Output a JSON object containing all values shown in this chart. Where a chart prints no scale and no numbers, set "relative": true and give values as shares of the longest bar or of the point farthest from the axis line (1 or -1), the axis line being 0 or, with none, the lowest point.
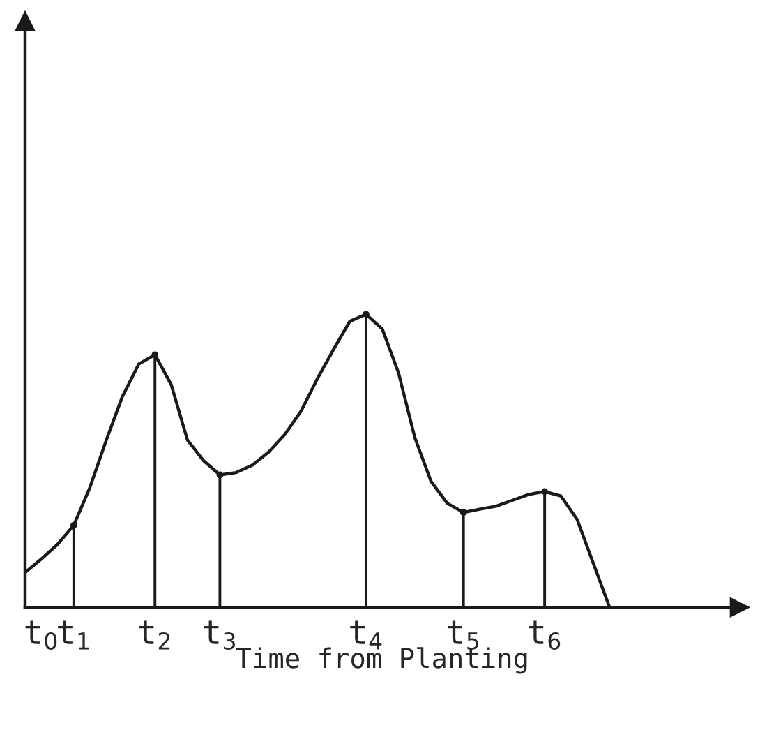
{
  "chart_data": {
    "type": "line",
    "relative": true,
    "xlabel": "Time from Planting",
    "categories": [
      null,
      "t$_{0}$",
      null,
      "t$_{1}$",
      null,
      null,
      null,
      null,
      "t$_{2}$",
      null,
      null,
      null,
      "t$_{3}$",
      null,
      null,
      null,
      null,
      null,
      null,
      null,
      null,
      "t$_{4}$",
      null,
      null,
      null,
      null,
      null,
      "t$_{5}$",
      null,
      null,
      null,
      null,
      "t$_{6}$",
      null,
      null,
      null,
      null,
      null,
      null,
      null,
      null,
      null,
      null,
      null,
      null
    ],
    "tick_labels": "x",
    "grid": false,
    "legend": false,
    "marker": "none",
    "line_style": "solid",
    "series": [
      {
        "color": "#1a1a1a",
        "values": [
          0.119,
          0.165,
          0.215,
          0.28,
          0.41,
          0.57,
          0.72,
          0.83,
          0.862,
          0.76,
          0.571,
          0.5,
          0.452,
          0.46,
          0.485,
          0.53,
          0.59,
          0.67,
          0.78,
          0.88,
          0.976,
          1.0,
          0.95,
          0.8,
          0.58,
          0.43,
          0.355,
          0.324,
          0.335,
          0.345,
          0.365,
          0.385,
          0.395,
          0.38,
          0.3,
          0.15,
          0,
          null,
          null,
          null,
          null,
          null,
          null,
          null,
          null
        ]
      },
      {
        "type": "lollipop",
        "marker": "circle",
        "color": "#1a1a1a",
        "values": [
          null,
          null,
          null,
          0.28,
          null,
          null,
          null,
          null,
          0.862,
          null,
          null,
          null,
          0.452,
          null,
          null,
          null,
          null,
          null,
          null,
          null,
          null,
          1.0,
          null,
          null,
          null,
          null,
          null,
          0.324,
          null,
          null,
          null,
          null,
          0.395,
          null,
          null,
          null,
          null,
          null,
          null,
          null,
          null,
          null,
          null,
          null,
          null
        ]
      }
    ]
  }
}
